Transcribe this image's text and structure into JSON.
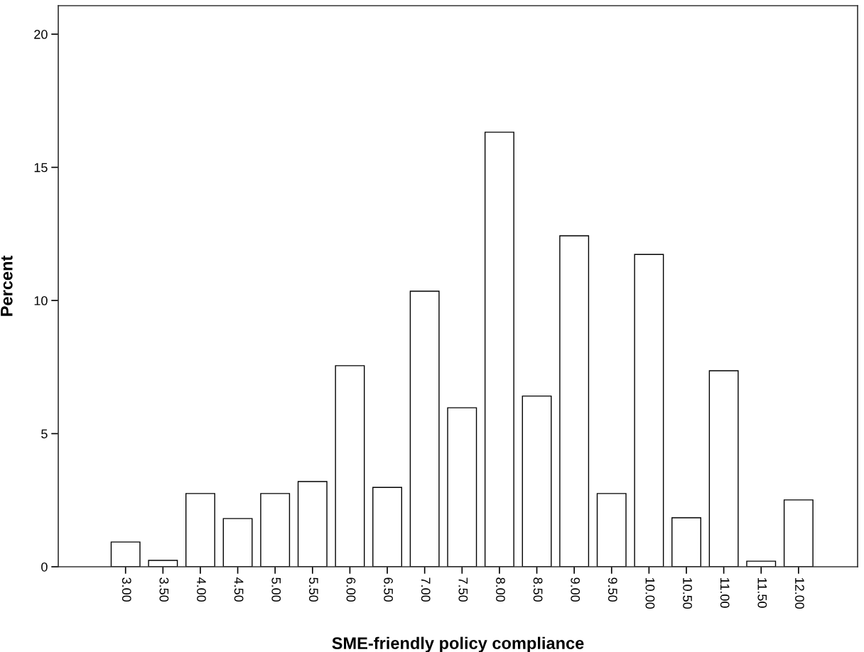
{
  "chart_data": {
    "type": "bar",
    "xlabel": "SME-friendly policy compliance",
    "ylabel": "Percent",
    "categories": [
      "3.00",
      "3.50",
      "4.00",
      "4.50",
      "5.00",
      "5.50",
      "6.00",
      "6.50",
      "7.00",
      "7.50",
      "8.00",
      "8.50",
      "9.00",
      "9.50",
      "10.00",
      "10.50",
      "11.00",
      "11.50",
      "12.00"
    ],
    "values": [
      0.93,
      0.24,
      2.75,
      1.81,
      2.75,
      3.2,
      7.55,
      2.98,
      10.35,
      5.97,
      16.32,
      6.41,
      12.43,
      2.75,
      11.73,
      1.84,
      7.36,
      0.21,
      2.51
    ],
    "color": "#ffffff",
    "ylim": [
      0,
      21.07
    ],
    "yticks": [
      0,
      5,
      10,
      15,
      20
    ],
    "grid": false,
    "legend": false
  }
}
